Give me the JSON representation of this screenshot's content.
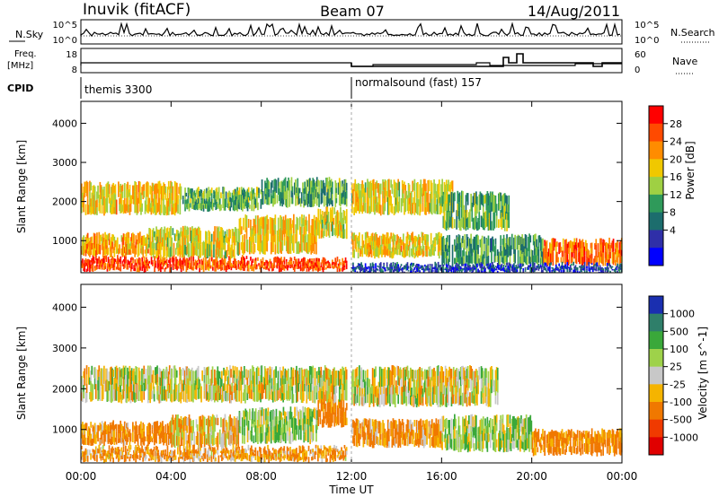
{
  "header": {
    "station": "Inuvik (fitACF)",
    "beam": "Beam 07",
    "date": "14/Aug/2011"
  },
  "top_panels": {
    "noise_left_label": "N.Sky",
    "noise_right_label": "N.Search",
    "noise_ticks": [
      "10^5",
      "10^0"
    ],
    "freq_label_line1": "Freq.",
    "freq_label_line2": "[MHz]",
    "freq_ticks": [
      "18",
      "8"
    ],
    "nave_label": "Nave",
    "nave_ticks": [
      "60",
      "0"
    ],
    "cpid_label": "CPID",
    "cpid_segments": [
      {
        "name": "themis 3300",
        "start_hour": 0,
        "end_hour": 12
      },
      {
        "name": "normalsound (fast) 157",
        "start_hour": 12,
        "end_hour": 24
      }
    ]
  },
  "chart_data": [
    {
      "type": "heatmap",
      "panel": "power",
      "ylabel": "Slant Range [km]",
      "xlabel": "",
      "x_range_hours": [
        0,
        24
      ],
      "ylim": [
        180,
        4560
      ],
      "y_ticks": [
        1000,
        2000,
        3000,
        4000
      ],
      "colorbar": {
        "label": "Power [dB]",
        "ticks": [
          "28",
          "24",
          "20",
          "16",
          "12",
          "8",
          "4"
        ],
        "colors": [
          "#ff0000",
          "#ff4a00",
          "#ff8c00",
          "#f0c800",
          "#9fd043",
          "#2f9a5a",
          "#1c6d6d",
          "#2f2fa8",
          "#0000ff"
        ],
        "range": [
          0,
          32
        ]
      },
      "bands": [
        {
          "t0": 0.0,
          "t1": 3.6,
          "r0": 250,
          "r1": 560,
          "value": 28
        },
        {
          "t0": 3.6,
          "t1": 7.5,
          "r0": 250,
          "r1": 560,
          "value": 26
        },
        {
          "t0": 7.5,
          "t1": 11.8,
          "r0": 250,
          "r1": 520,
          "value": 27
        },
        {
          "t0": 0.0,
          "t1": 3.0,
          "r0": 620,
          "r1": 1150,
          "value": 22
        },
        {
          "t0": 3.0,
          "t1": 7.0,
          "r0": 600,
          "r1": 1300,
          "value": 18
        },
        {
          "t0": 7.0,
          "t1": 10.5,
          "r0": 700,
          "r1": 1600,
          "value": 20
        },
        {
          "t0": 10.5,
          "t1": 11.8,
          "r0": 1100,
          "r1": 1800,
          "value": 18
        },
        {
          "t0": 0.0,
          "t1": 4.5,
          "r0": 1700,
          "r1": 2450,
          "value": 20
        },
        {
          "t0": 4.5,
          "t1": 8.0,
          "r0": 1800,
          "r1": 2300,
          "value": 14
        },
        {
          "t0": 8.0,
          "t1": 11.8,
          "r0": 1900,
          "r1": 2550,
          "value": 13
        },
        {
          "t0": 12.0,
          "t1": 16.0,
          "r0": 600,
          "r1": 1150,
          "value": 20
        },
        {
          "t0": 12.0,
          "t1": 16.5,
          "r0": 1700,
          "r1": 2500,
          "value": 19
        },
        {
          "t0": 16.0,
          "t1": 19.0,
          "r0": 1300,
          "r1": 2200,
          "value": 14
        },
        {
          "t0": 16.0,
          "t1": 20.5,
          "r0": 400,
          "r1": 1100,
          "value": 12
        },
        {
          "t0": 20.5,
          "t1": 24.0,
          "r0": 400,
          "r1": 1000,
          "value": 25
        },
        {
          "t0": 12.0,
          "t1": 24.0,
          "r0": 200,
          "r1": 380,
          "value": 6
        }
      ]
    },
    {
      "type": "heatmap",
      "panel": "velocity",
      "ylabel": "Slant Range [km]",
      "xlabel": "Time UT",
      "x_range_hours": [
        0,
        24
      ],
      "x_ticks": [
        "00:00",
        "04:00",
        "08:00",
        "12:00",
        "16:00",
        "20:00",
        "00:00"
      ],
      "ylim": [
        180,
        4560
      ],
      "y_ticks": [
        1000,
        2000,
        3000,
        4000
      ],
      "colorbar": {
        "label": "Velocity [m s^-1]",
        "ticks": [
          "1000",
          "500",
          "100",
          "25",
          "-25",
          "-100",
          "-500",
          "-1000"
        ],
        "colors": [
          "#1a2fb0",
          "#2f7f6a",
          "#3aa83a",
          "#9ed24a",
          "#c8c8c8",
          "#f5b400",
          "#f07800",
          "#f03a00",
          "#e00000"
        ]
      },
      "bands": [
        {
          "t0": 0.0,
          "t1": 4.0,
          "r0": 650,
          "r1": 1150,
          "value": -150
        },
        {
          "t0": 4.0,
          "t1": 7.0,
          "r0": 600,
          "r1": 1300,
          "value": -60
        },
        {
          "t0": 7.0,
          "t1": 10.5,
          "r0": 700,
          "r1": 1500,
          "value": 80
        },
        {
          "t0": 10.5,
          "t1": 11.8,
          "r0": 1100,
          "r1": 1800,
          "value": -200
        },
        {
          "t0": 0.0,
          "t1": 11.8,
          "r0": 1700,
          "r1": 2500,
          "value": 0
        },
        {
          "t0": 0.0,
          "t1": 11.8,
          "r0": 250,
          "r1": 550,
          "value": -120
        },
        {
          "t0": 12.0,
          "t1": 16.0,
          "r0": 600,
          "r1": 1200,
          "value": -150
        },
        {
          "t0": 12.0,
          "t1": 18.5,
          "r0": 1600,
          "r1": 2500,
          "value": 0
        },
        {
          "t0": 16.0,
          "t1": 20.0,
          "r0": 500,
          "r1": 1300,
          "value": 60
        },
        {
          "t0": 20.0,
          "t1": 24.0,
          "r0": 400,
          "r1": 950,
          "value": -180
        }
      ]
    }
  ]
}
